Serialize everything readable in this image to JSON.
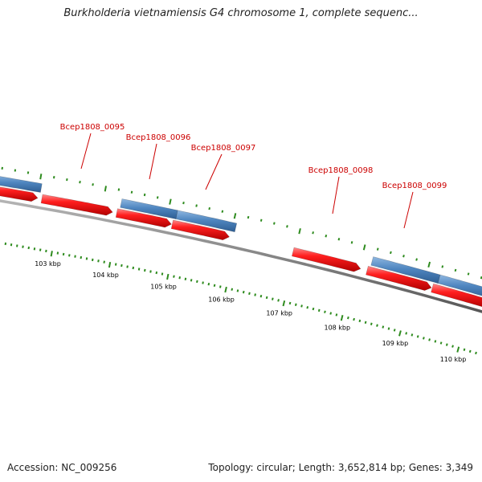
{
  "title": "Burkholderia vietnamiensis G4 chromosome 1, complete sequenc...",
  "footer": {
    "accession_text": "Accession: NC_009256",
    "stats_text": "Topology: circular; Length: 3,652,814 bp; Genes: 3,349"
  },
  "colors": {
    "forward_gene": "#ff1a1a",
    "reverse_gene": "#4f86c0",
    "backbone": "#8a8a8a",
    "tick": "#2e8b1e",
    "label": "#cc0000",
    "tick_label": "#000000"
  },
  "gene_labels": [
    {
      "name": "Bcep1808_0095"
    },
    {
      "name": "Bcep1808_0096"
    },
    {
      "name": "Bcep1808_0097"
    },
    {
      "name": "Bcep1808_0098"
    },
    {
      "name": "Bcep1808_0099"
    }
  ],
  "ruler": {
    "labels": [
      "103 kbp",
      "104 kbp",
      "105 kbp",
      "106 kbp",
      "107 kbp",
      "108 kbp",
      "109 kbp",
      "110 kbp"
    ]
  }
}
